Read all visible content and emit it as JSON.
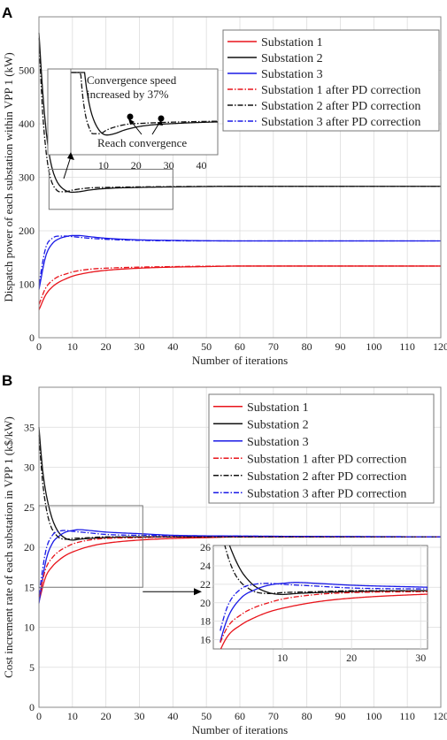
{
  "colors": {
    "red": "#e8141b",
    "black": "#111111",
    "blue": "#1a1ae6",
    "grid": "#dcdcdc",
    "frame": "#888888"
  },
  "chart_data": [
    {
      "panel": "A",
      "type": "line",
      "xlabel": "Number of iterations",
      "ylabel": "Dispatch power of each substation within VPP 1 (kW)",
      "xlim": [
        0,
        120
      ],
      "ylim": [
        0,
        600
      ],
      "xticks": [
        0,
        10,
        20,
        30,
        40,
        50,
        60,
        70,
        80,
        90,
        100,
        110,
        120
      ],
      "yticks": [
        0,
        100,
        200,
        300,
        400,
        500
      ],
      "grid": true,
      "legend_position": "top-right",
      "series": [
        {
          "name": "Substation 1",
          "color": "red",
          "dash": "solid",
          "x": [
            0,
            2,
            4,
            6,
            8,
            10,
            15,
            20,
            30,
            40,
            50,
            60,
            120
          ],
          "y": [
            52,
            80,
            95,
            104,
            110,
            115,
            122,
            126,
            130,
            132,
            133,
            134,
            134
          ]
        },
        {
          "name": "Substation 2",
          "color": "black",
          "dash": "solid",
          "x": [
            0,
            1,
            2,
            3,
            4,
            5,
            6,
            8,
            10,
            12,
            15,
            20,
            30,
            40,
            60,
            120
          ],
          "y": [
            570,
            470,
            395,
            345,
            315,
            297,
            286,
            275,
            272,
            273,
            276,
            279,
            281,
            282,
            283,
            283
          ]
        },
        {
          "name": "Substation 3",
          "color": "blue",
          "dash": "solid",
          "x": [
            0,
            2,
            4,
            6,
            8,
            10,
            12,
            15,
            20,
            30,
            40,
            60,
            120
          ],
          "y": [
            90,
            152,
            176,
            185,
            189,
            191,
            191,
            189,
            186,
            183,
            182,
            181,
            181
          ]
        },
        {
          "name": "Substation 1 after PD correction",
          "color": "red",
          "dash": "dashdot",
          "x": [
            0,
            2,
            4,
            6,
            8,
            10,
            15,
            20,
            30,
            40,
            60,
            120
          ],
          "y": [
            62,
            93,
            107,
            115,
            119,
            123,
            128,
            130,
            132,
            133,
            134,
            134
          ]
        },
        {
          "name": "Substation 2 after PD correction",
          "color": "black",
          "dash": "dashdot",
          "x": [
            0,
            1,
            2,
            3,
            4,
            5,
            6,
            8,
            10,
            15,
            20,
            30,
            60,
            120
          ],
          "y": [
            560,
            430,
            355,
            310,
            288,
            278,
            273,
            273,
            276,
            280,
            281,
            282,
            283,
            283
          ]
        },
        {
          "name": "Substation 3 after PD correction",
          "color": "blue",
          "dash": "dashdot",
          "x": [
            0,
            2,
            4,
            6,
            8,
            10,
            15,
            20,
            30,
            60,
            120
          ],
          "y": [
            100,
            168,
            186,
            190,
            190,
            189,
            186,
            184,
            182,
            181,
            181
          ]
        }
      ],
      "annotations": {
        "speed": "Convergence speed increased by 37%",
        "converge": "Reach convergence"
      },
      "inset": {
        "xlim": [
          0,
          45
        ],
        "xticks": [
          10,
          20,
          30,
          40
        ],
        "source_xlim": [
          3,
          40
        ],
        "source_ylim": [
          240,
          315
        ]
      }
    },
    {
      "panel": "B",
      "type": "line",
      "xlabel": "Number of iterations",
      "ylabel": "Cost increment rate of each substation in VPP 1 (k$/kW)",
      "xlim": [
        0,
        120
      ],
      "ylim": [
        0,
        40
      ],
      "xticks": [
        0,
        10,
        20,
        30,
        40,
        50,
        60,
        70,
        80,
        90,
        100,
        110,
        120
      ],
      "yticks": [
        0,
        5,
        10,
        15,
        20,
        25,
        30,
        35
      ],
      "grid": true,
      "legend_position": "top-right",
      "series": [
        {
          "name": "Substation 1",
          "color": "red",
          "dash": "solid",
          "x": [
            0,
            2,
            4,
            6,
            8,
            10,
            15,
            20,
            30,
            40,
            50,
            60,
            120
          ],
          "y": [
            13.2,
            16.3,
            17.6,
            18.4,
            19.0,
            19.4,
            20.1,
            20.5,
            20.9,
            21.1,
            21.2,
            21.3,
            21.3
          ]
        },
        {
          "name": "Substation 2",
          "color": "black",
          "dash": "solid",
          "x": [
            0,
            1,
            2,
            3,
            4,
            5,
            6,
            8,
            10,
            12,
            15,
            20,
            30,
            60,
            120
          ],
          "y": [
            35,
            30,
            27,
            25,
            23.5,
            22.5,
            21.8,
            21.1,
            20.9,
            21.0,
            21.1,
            21.2,
            21.3,
            21.3,
            21.3
          ]
        },
        {
          "name": "Substation 3",
          "color": "blue",
          "dash": "solid",
          "x": [
            0,
            2,
            4,
            6,
            8,
            10,
            12,
            15,
            20,
            30,
            40,
            60,
            120
          ],
          "y": [
            13.0,
            18.2,
            20.5,
            21.4,
            21.9,
            22.1,
            22.2,
            22.1,
            21.9,
            21.7,
            21.5,
            21.4,
            21.3
          ]
        },
        {
          "name": "Substation 1 after PD correction",
          "color": "red",
          "dash": "dashdot",
          "x": [
            0,
            2,
            4,
            6,
            8,
            10,
            15,
            20,
            30,
            40,
            60,
            120
          ],
          "y": [
            13.8,
            17.3,
            18.7,
            19.5,
            20.0,
            20.4,
            20.9,
            21.1,
            21.2,
            21.3,
            21.3,
            21.3
          ]
        },
        {
          "name": "Substation 2 after PD correction",
          "color": "black",
          "dash": "dashdot",
          "x": [
            0,
            1,
            2,
            3,
            4,
            5,
            6,
            8,
            10,
            15,
            20,
            30,
            60,
            120
          ],
          "y": [
            34,
            28.5,
            25.3,
            23.3,
            22.2,
            21.6,
            21.2,
            21.0,
            21.1,
            21.2,
            21.3,
            21.3,
            21.3,
            21.3
          ]
        },
        {
          "name": "Substation 3 after PD correction",
          "color": "blue",
          "dash": "dashdot",
          "x": [
            0,
            2,
            4,
            6,
            8,
            10,
            15,
            20,
            30,
            60,
            120
          ],
          "y": [
            14.0,
            19.5,
            21.5,
            22.0,
            22.1,
            22.0,
            21.8,
            21.6,
            21.5,
            21.4,
            21.3
          ]
        }
      ],
      "inset": {
        "xlim": [
          0,
          31
        ],
        "ylim": [
          15,
          26.2
        ],
        "xticks": [
          10,
          20,
          30
        ],
        "yticks": [
          16,
          18,
          20,
          22,
          24,
          26
        ],
        "source_xlim": [
          0,
          31
        ],
        "source_ylim": [
          15,
          25.2
        ]
      }
    }
  ]
}
